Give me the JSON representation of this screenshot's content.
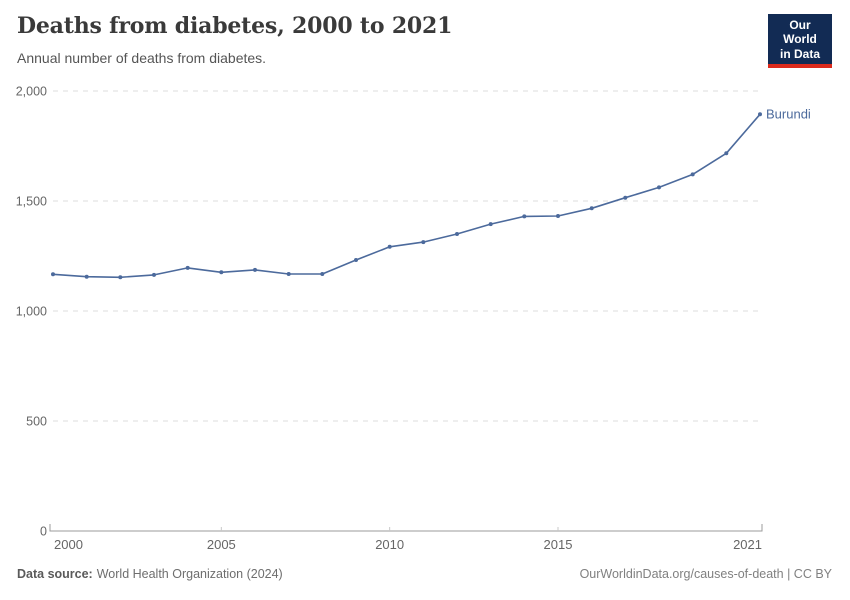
{
  "header": {
    "title": "Deaths from diabetes, 2000 to 2021",
    "subtitle": "Annual number of deaths from diabetes.",
    "logo": {
      "line1": "Our World",
      "line2": "in Data",
      "bg_color": "#122B54",
      "accent_color": "#DC2A1C"
    }
  },
  "chart_data": {
    "type": "line",
    "title": "Deaths from diabetes, 2000 to 2021",
    "subtitle": "Annual number of deaths from diabetes.",
    "xlabel": "",
    "ylabel": "",
    "xlim": [
      2000,
      2021
    ],
    "ylim": [
      0,
      2000
    ],
    "grid": "horizontal-dashed",
    "legend_position": "end-of-line-label",
    "x_ticks": [
      2000,
      2005,
      2010,
      2015,
      2021
    ],
    "x_tick_labels": [
      "2000",
      "2005",
      "2010",
      "2015",
      "2021"
    ],
    "y_ticks": [
      0,
      500,
      1000,
      1500,
      2000
    ],
    "y_tick_labels": [
      "0",
      "500",
      "1,000",
      "1,500",
      "2,000"
    ],
    "series": [
      {
        "name": "Burundi",
        "color": "#4C6A9C",
        "x": [
          2000,
          2001,
          2002,
          2003,
          2004,
          2005,
          2006,
          2007,
          2008,
          2009,
          2010,
          2011,
          2012,
          2013,
          2014,
          2015,
          2016,
          2017,
          2018,
          2019,
          2020,
          2021
        ],
        "values": [
          1167,
          1156,
          1153,
          1164,
          1196,
          1176,
          1187,
          1168,
          1168,
          1232,
          1292,
          1313,
          1350,
          1395,
          1430,
          1432,
          1467,
          1515,
          1562,
          1621,
          1717,
          1894
        ]
      }
    ],
    "colors": {
      "gridline": "#dcdcdc",
      "axis_line": "#9b9b9b",
      "tick_mark": "#c8c8c8",
      "tick_label": "#666666"
    }
  },
  "footer": {
    "source_bold": "Data source:",
    "source_rest": "World Health Organization (2024)",
    "right": "OurWorldinData.org/causes-of-death | CC BY"
  }
}
